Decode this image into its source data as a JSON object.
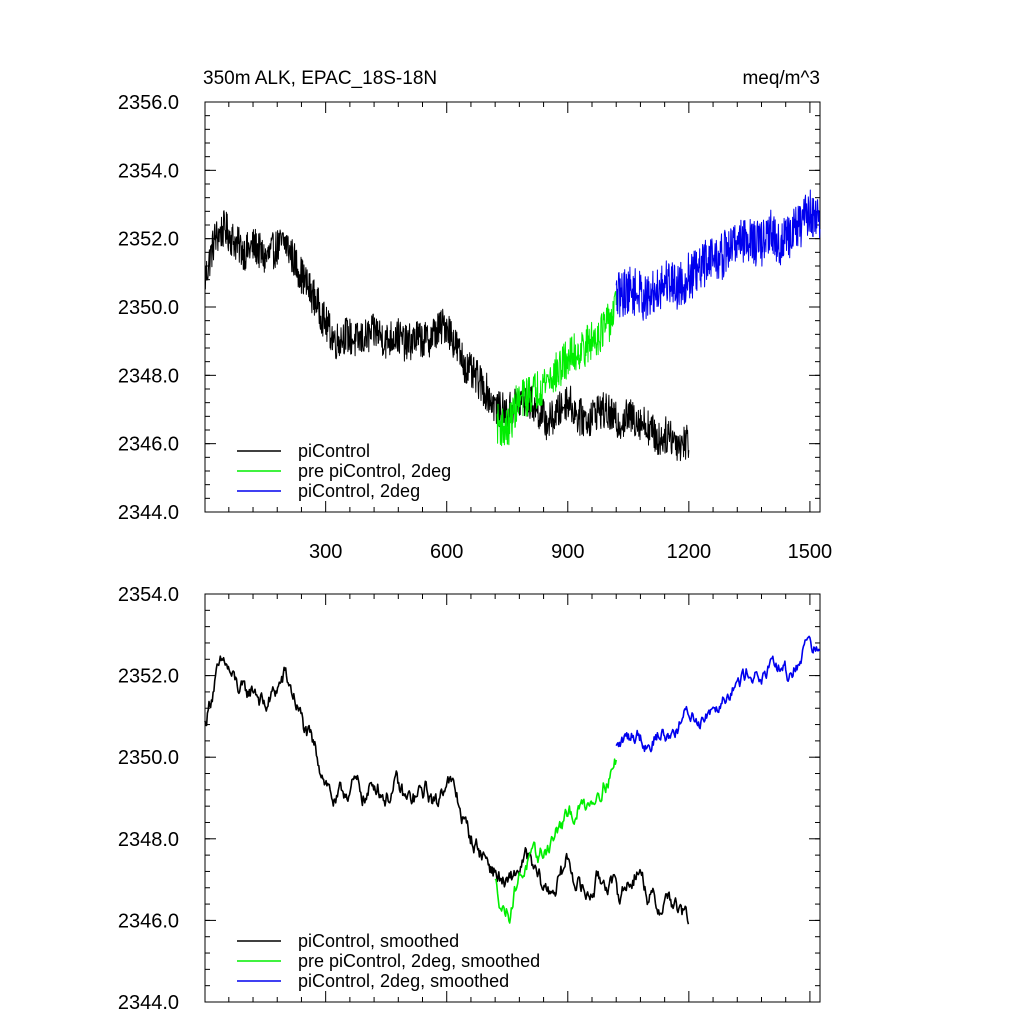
{
  "chart_data": [
    {
      "type": "line",
      "title": "350m ALK, EPAC_18S-18N",
      "units": "meq/m^3",
      "xlim": [
        1,
        1525
      ],
      "ylim": [
        2344.0,
        2356.0
      ],
      "xticks": [
        300,
        600,
        900,
        1200,
        1500
      ],
      "xtick_labels": [
        "300",
        "600",
        "900",
        "1200",
        "1500"
      ],
      "yticks": [
        2344.0,
        2346.0,
        2348.0,
        2350.0,
        2352.0,
        2354.0,
        2356.0
      ],
      "ytick_labels": [
        "2344.0",
        "2346.0",
        "2348.0",
        "2350.0",
        "2352.0",
        "2354.0",
        "2356.0"
      ],
      "legend_position": "bottom-left",
      "series": [
        {
          "name": "piControl",
          "color": "#000000",
          "x": [
            1,
            25,
            50,
            75,
            100,
            125,
            150,
            175,
            200,
            225,
            250,
            275,
            300,
            325,
            350,
            375,
            400,
            425,
            450,
            475,
            500,
            525,
            550,
            575,
            600,
            625,
            650,
            675,
            700,
            725,
            750,
            775,
            800,
            825,
            850,
            875,
            900,
            925,
            950,
            975,
            1000,
            1025,
            1050,
            1075,
            1100,
            1125,
            1150,
            1175,
            1200
          ],
          "y": [
            2350.8,
            2352.0,
            2352.3,
            2351.9,
            2351.6,
            2351.8,
            2351.4,
            2351.7,
            2351.9,
            2351.3,
            2350.7,
            2350.2,
            2349.5,
            2349.0,
            2349.2,
            2349.0,
            2349.1,
            2349.3,
            2349.0,
            2349.2,
            2348.9,
            2349.1,
            2349.0,
            2349.3,
            2349.5,
            2348.8,
            2348.2,
            2347.9,
            2347.5,
            2347.0,
            2346.9,
            2347.2,
            2347.3,
            2347.0,
            2346.6,
            2346.9,
            2347.3,
            2346.8,
            2346.7,
            2347.0,
            2346.9,
            2346.6,
            2346.8,
            2346.7,
            2346.5,
            2346.1,
            2346.3,
            2346.0,
            2346.1
          ],
          "noise": 0.55
        },
        {
          "name": "pre piControl, 2deg",
          "color": "#00ee00",
          "x": [
            725,
            750,
            775,
            800,
            825,
            850,
            875,
            900,
            925,
            950,
            975,
            1000,
            1020
          ],
          "y": [
            2346.6,
            2346.4,
            2347.2,
            2347.4,
            2347.6,
            2347.9,
            2348.1,
            2348.5,
            2348.7,
            2348.9,
            2349.2,
            2349.5,
            2350.0
          ],
          "noise": 0.6
        },
        {
          "name": "piControl, 2deg",
          "color": "#0000ee",
          "x": [
            1020,
            1050,
            1075,
            1100,
            1125,
            1150,
            1175,
            1200,
            1225,
            1250,
            1275,
            1300,
            1325,
            1350,
            1375,
            1400,
            1425,
            1450,
            1475,
            1500,
            1525
          ],
          "y": [
            2350.3,
            2350.5,
            2350.4,
            2350.2,
            2350.6,
            2350.8,
            2350.6,
            2350.9,
            2351.0,
            2351.5,
            2351.4,
            2351.7,
            2352.0,
            2352.0,
            2351.8,
            2352.2,
            2351.8,
            2352.1,
            2352.4,
            2352.8,
            2352.5
          ],
          "noise": 0.7
        }
      ]
    },
    {
      "type": "line",
      "xlim": [
        1,
        1525
      ],
      "ylim": [
        2344.0,
        2354.0
      ],
      "xticks": [
        300,
        600,
        900,
        1200,
        1500
      ],
      "yticks": [
        2344.0,
        2346.0,
        2348.0,
        2350.0,
        2352.0,
        2354.0
      ],
      "ytick_labels": [
        "2344.0",
        "2346.0",
        "2348.0",
        "2350.0",
        "2352.0",
        "2354.0"
      ],
      "legend_position": "bottom-left",
      "series": [
        {
          "name": "piControl, smoothed",
          "color": "#000000",
          "x": [
            1,
            25,
            50,
            75,
            100,
            125,
            150,
            175,
            200,
            225,
            250,
            275,
            300,
            325,
            350,
            375,
            400,
            425,
            450,
            475,
            500,
            525,
            550,
            575,
            600,
            625,
            650,
            675,
            700,
            725,
            750,
            775,
            800,
            825,
            850,
            875,
            900,
            925,
            950,
            975,
            1000,
            1025,
            1050,
            1075,
            1100,
            1125,
            1150,
            1175,
            1200
          ],
          "y": [
            2350.8,
            2351.9,
            2352.3,
            2351.8,
            2351.5,
            2351.7,
            2351.2,
            2351.6,
            2352.0,
            2351.4,
            2350.6,
            2350.1,
            2349.5,
            2348.8,
            2349.2,
            2349.3,
            2349.0,
            2349.4,
            2349.0,
            2349.3,
            2348.9,
            2349.0,
            2349.2,
            2348.8,
            2349.6,
            2349.0,
            2348.2,
            2347.8,
            2347.5,
            2347.1,
            2346.8,
            2347.2,
            2347.5,
            2347.0,
            2346.7,
            2346.9,
            2347.5,
            2346.9,
            2346.6,
            2347.0,
            2347.0,
            2346.6,
            2346.9,
            2347.3,
            2346.6,
            2346.3,
            2346.6,
            2346.2,
            2346.0
          ],
          "noise": 0.18
        },
        {
          "name": "pre piControl, 2deg, smoothed",
          "color": "#00ee00",
          "x": [
            720,
            740,
            755,
            775,
            800,
            825,
            850,
            875,
            900,
            925,
            950,
            975,
            1000,
            1020
          ],
          "y": [
            2346.9,
            2346.3,
            2346.2,
            2347.0,
            2347.4,
            2347.5,
            2347.8,
            2348.2,
            2348.5,
            2348.7,
            2348.9,
            2349.2,
            2349.5,
            2349.9
          ],
          "noise": 0.16
        },
        {
          "name": "piControl, 2deg, smoothed",
          "color": "#0000ee",
          "x": [
            1020,
            1050,
            1075,
            1100,
            1125,
            1150,
            1175,
            1200,
            1225,
            1250,
            1275,
            1300,
            1325,
            1350,
            1375,
            1400,
            1425,
            1450,
            1475,
            1500,
            1525
          ],
          "y": [
            2350.2,
            2350.5,
            2350.6,
            2350.3,
            2350.6,
            2350.5,
            2350.8,
            2351.1,
            2350.9,
            2351.2,
            2351.4,
            2351.7,
            2351.8,
            2352.2,
            2351.9,
            2352.1,
            2352.2,
            2352.0,
            2352.4,
            2353.0,
            2352.4
          ],
          "noise": 0.15
        }
      ]
    }
  ]
}
